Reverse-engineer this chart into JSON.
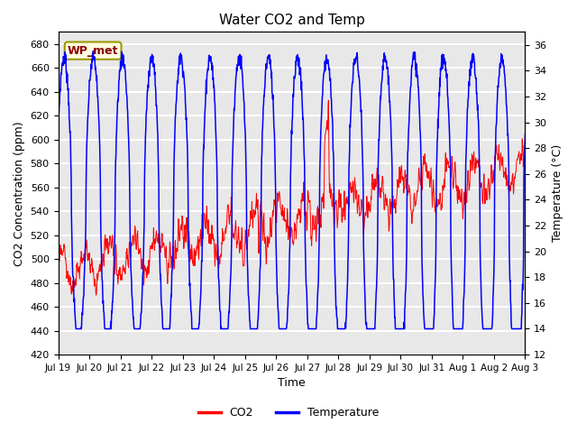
{
  "title": "Water CO2 and Temp",
  "xlabel": "Time",
  "ylabel_left": "CO2 Concentration (ppm)",
  "ylabel_right": "Temperature (°C)",
  "annotation": "WP_met",
  "co2_color": "red",
  "temp_color": "blue",
  "co2_ylim": [
    420,
    690
  ],
  "temp_ylim": [
    12,
    37
  ],
  "co2_yticks": [
    420,
    440,
    460,
    480,
    500,
    520,
    540,
    560,
    580,
    600,
    620,
    640,
    660,
    680
  ],
  "temp_yticks": [
    12,
    14,
    16,
    18,
    20,
    22,
    24,
    26,
    28,
    30,
    32,
    34,
    36
  ],
  "x_tick_labels": [
    "Jul 19",
    "Jul 20",
    "Jul 21",
    "Jul 22",
    "Jul 23",
    "Jul 24",
    "Jul 25",
    "Jul 26",
    "Jul 27",
    "Jul 28",
    "Jul 29",
    "Jul 30",
    "Jul 31",
    "Aug 1",
    "Aug 2",
    "Aug 3"
  ],
  "legend_labels": [
    "CO2",
    "Temperature"
  ],
  "background_color": "#e8e8e8",
  "grid_color": "white",
  "annotation_facecolor": "lightyellow",
  "annotation_edgecolor": "#999900",
  "annotation_textcolor": "darkred",
  "figsize": [
    6.4,
    4.8
  ],
  "dpi": 100
}
